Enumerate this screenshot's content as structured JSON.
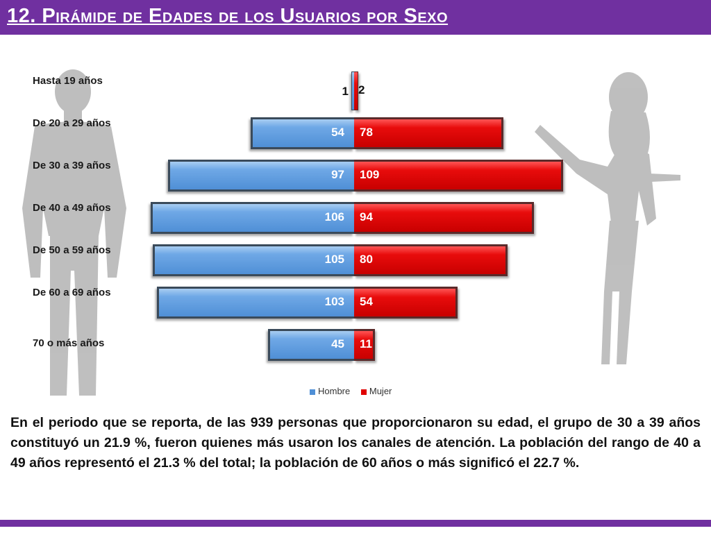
{
  "header": {
    "title": "12. Pirámide de Edades de los Usuarios por Sexo",
    "color": "#7030a0"
  },
  "chart_data": {
    "type": "bar",
    "orientation": "horizontal",
    "layout": "population-pyramid",
    "categories": [
      "Hasta 19 años",
      "De 20 a 29 años",
      "De 30 a 39 años",
      "De 40 a 49 años",
      "De 50 a 59 años",
      "De 60 a 69 años",
      "70 o más años"
    ],
    "series": [
      {
        "name": "Hombre",
        "color": "#4f8fd6",
        "values": [
          1,
          54,
          97,
          106,
          105,
          103,
          45
        ]
      },
      {
        "name": "Mujer",
        "color": "#e00000",
        "values": [
          2,
          78,
          109,
          94,
          80,
          54,
          11
        ]
      }
    ],
    "legend": "bottom-center",
    "grid": false
  },
  "body_text": "En el periodo que se reporta, de las 939 personas que proporcionaron su edad, el grupo de 30 a 39 años constituyó un 21.9 %, fueron quienes más usaron los canales de atención. La población del rango de 40 a 49 años representó el 21.3 % del total; la población de 60 años o más significó el 22.7 %."
}
